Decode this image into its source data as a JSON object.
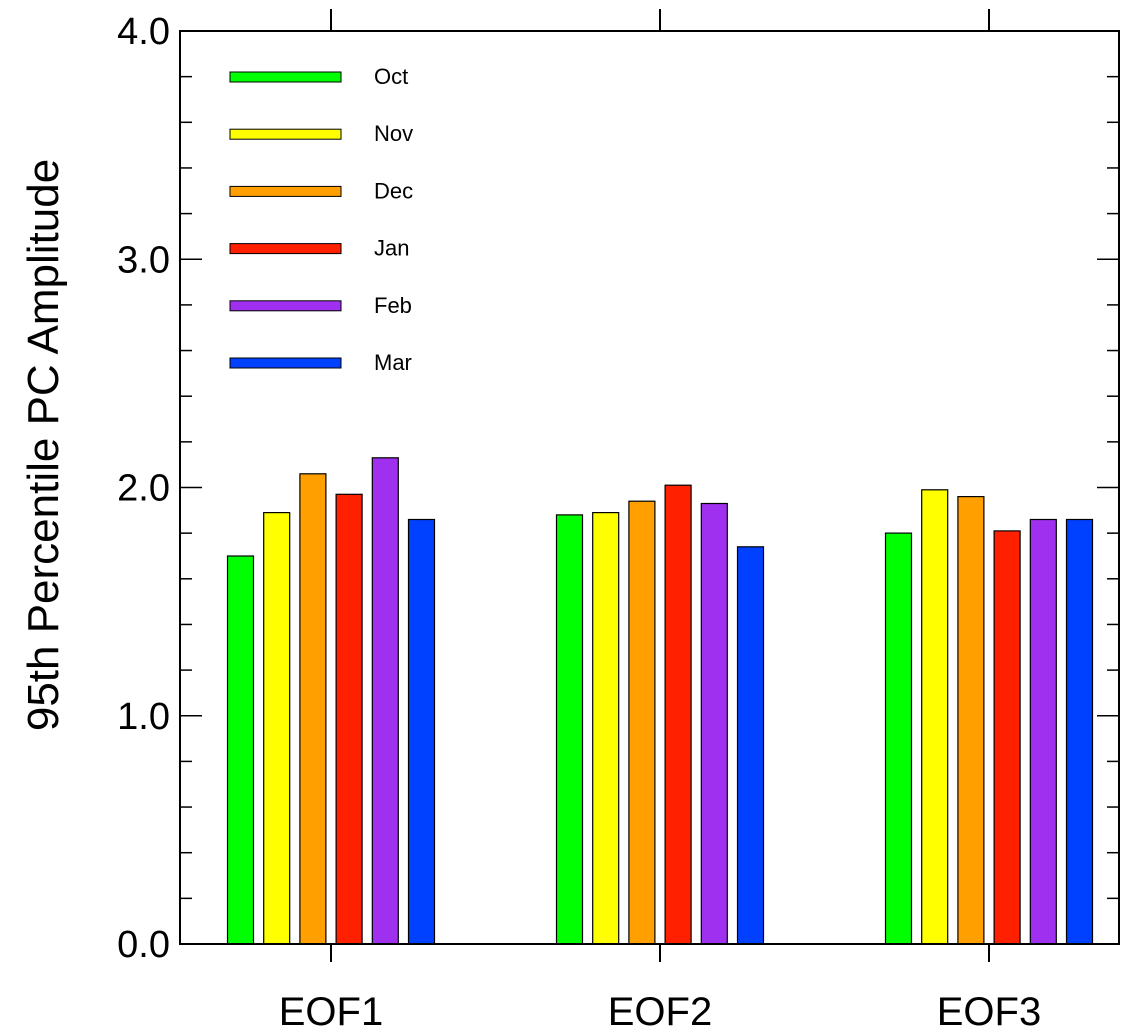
{
  "chart_data": {
    "type": "bar",
    "categories": [
      "EOF1",
      "EOF2",
      "EOF3"
    ],
    "ylabel": "95th Percentile PC Amplitude",
    "xlabel": "",
    "ylim": [
      0,
      4
    ],
    "yticks": [
      "0.0",
      "1.0",
      "2.0",
      "3.0",
      "4.0"
    ],
    "legend_position": "top-left",
    "series": [
      {
        "name": "Oct",
        "color": "#00ff00",
        "values": [
          1.7,
          1.88,
          1.8
        ]
      },
      {
        "name": "Nov",
        "color": "#ffff00",
        "values": [
          1.89,
          1.89,
          1.99
        ]
      },
      {
        "name": "Dec",
        "color": "#ffa000",
        "values": [
          2.06,
          1.94,
          1.96
        ]
      },
      {
        "name": "Jan",
        "color": "#ff2000",
        "values": [
          1.97,
          2.01,
          1.81
        ]
      },
      {
        "name": "Feb",
        "color": "#a030f0",
        "values": [
          2.13,
          1.93,
          1.86
        ]
      },
      {
        "name": "Mar",
        "color": "#0040ff",
        "values": [
          1.86,
          1.74,
          1.86
        ]
      }
    ]
  }
}
